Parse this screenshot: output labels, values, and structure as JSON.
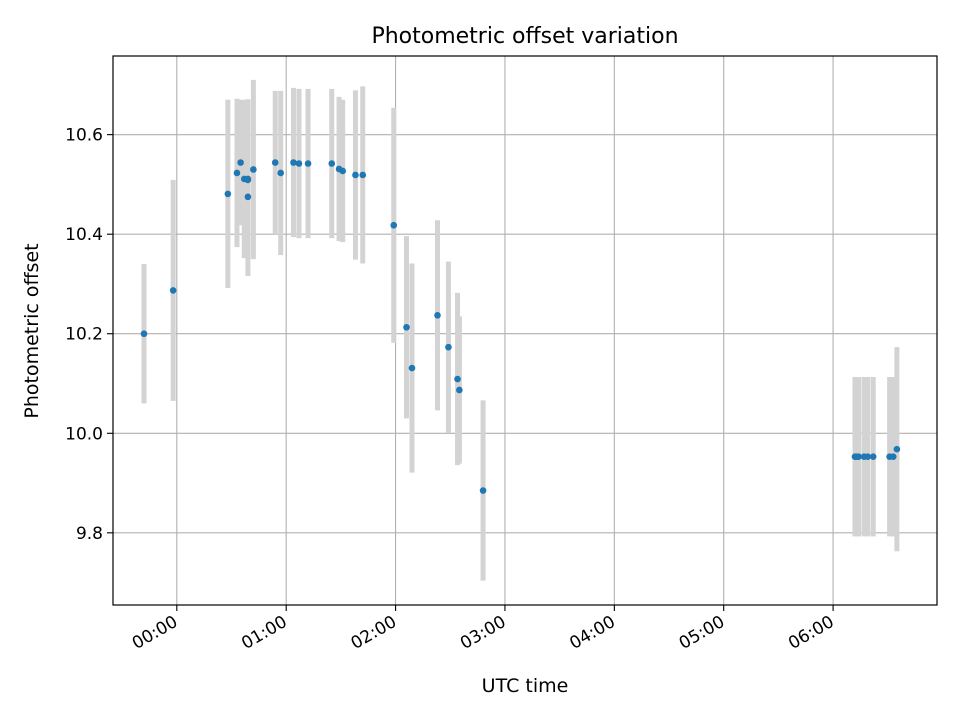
{
  "chart_data": {
    "type": "scatter",
    "title": "Photometric offset variation",
    "xlabel": "UTC time",
    "ylabel": "Photometric offset",
    "x_axis": "time (HH:MM UTC)",
    "xlim": [
      "23:25",
      "06:57"
    ],
    "ylim": [
      9.655,
      10.758
    ],
    "x_ticks": [
      "00:00",
      "01:00",
      "02:00",
      "03:00",
      "04:00",
      "05:00",
      "06:00"
    ],
    "y_ticks": [
      "9.8",
      "10.0",
      "10.2",
      "10.4",
      "10.6"
    ],
    "grid": true,
    "legend": false,
    "marker_color": "#1f77b4",
    "errorbar_color": "#d3d3d3",
    "points": [
      {
        "t": "23:42",
        "y": 10.2,
        "err": 0.14
      },
      {
        "t": "23:58",
        "y": 10.287,
        "err": 0.222
      },
      {
        "t": "00:28",
        "y": 10.481,
        "err": 0.189
      },
      {
        "t": "00:33",
        "y": 10.523,
        "err": 0.149
      },
      {
        "t": "00:35",
        "y": 10.544,
        "err": 0.126
      },
      {
        "t": "00:37",
        "y": 10.511,
        "err": 0.159
      },
      {
        "t": "00:39",
        "y": 10.511,
        "err": 0.16
      },
      {
        "t": "00:39",
        "y": 10.509,
        "err": 0.159
      },
      {
        "t": "00:39",
        "y": 10.475,
        "err": 0.159
      },
      {
        "t": "00:42",
        "y": 10.53,
        "err": 0.18
      },
      {
        "t": "00:54",
        "y": 10.544,
        "err": 0.144
      },
      {
        "t": "00:57",
        "y": 10.523,
        "err": 0.165
      },
      {
        "t": "01:04",
        "y": 10.544,
        "err": 0.15
      },
      {
        "t": "01:07",
        "y": 10.542,
        "err": 0.15
      },
      {
        "t": "01:12",
        "y": 10.542,
        "err": 0.15
      },
      {
        "t": "01:25",
        "y": 10.542,
        "err": 0.15
      },
      {
        "t": "01:29",
        "y": 10.531,
        "err": 0.145
      },
      {
        "t": "01:31",
        "y": 10.527,
        "err": 0.143
      },
      {
        "t": "01:38",
        "y": 10.519,
        "err": 0.17
      },
      {
        "t": "01:42",
        "y": 10.519,
        "err": 0.178
      },
      {
        "t": "01:59",
        "y": 10.418,
        "err": 0.236
      },
      {
        "t": "02:06",
        "y": 10.213,
        "err": 0.183
      },
      {
        "t": "02:09",
        "y": 10.131,
        "err": 0.21
      },
      {
        "t": "02:23",
        "y": 10.237,
        "err": 0.191
      },
      {
        "t": "02:29",
        "y": 10.173,
        "err": 0.172
      },
      {
        "t": "02:34",
        "y": 10.109,
        "err": 0.173
      },
      {
        "t": "02:35",
        "y": 10.087,
        "err": 0.148
      },
      {
        "t": "02:48",
        "y": 9.885,
        "err": 0.181
      },
      {
        "t": "06:12",
        "y": 9.953,
        "err": 0.16
      },
      {
        "t": "06:13",
        "y": 9.953,
        "err": 0.16
      },
      {
        "t": "06:14",
        "y": 9.953,
        "err": 0.16
      },
      {
        "t": "06:17",
        "y": 9.953,
        "err": 0.16
      },
      {
        "t": "06:19",
        "y": 9.953,
        "err": 0.16
      },
      {
        "t": "06:22",
        "y": 9.953,
        "err": 0.16
      },
      {
        "t": "06:31",
        "y": 9.953,
        "err": 0.16
      },
      {
        "t": "06:33",
        "y": 9.953,
        "err": 0.16
      },
      {
        "t": "06:35",
        "y": 9.968,
        "err": 0.205
      }
    ]
  }
}
